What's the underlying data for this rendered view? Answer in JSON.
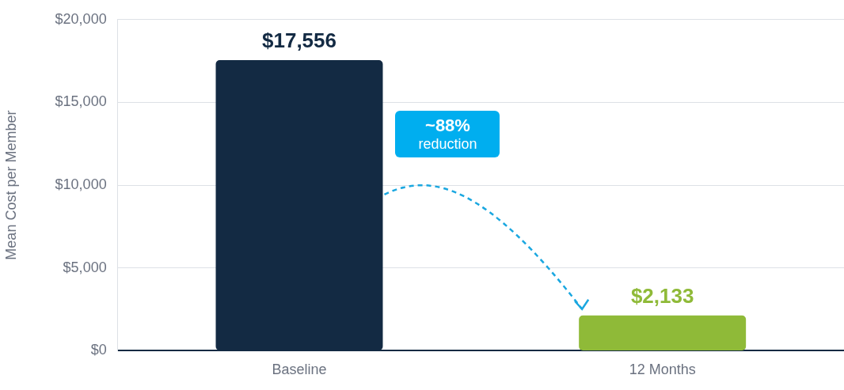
{
  "chart_data": {
    "type": "bar",
    "ylabel": "Mean Cost per Member",
    "categories": [
      "Baseline",
      "12 Months"
    ],
    "values": [
      17556,
      2133
    ],
    "colors": [
      "#132a43",
      "#8fba38"
    ],
    "value_labels": [
      "$17,556",
      "$2,133"
    ],
    "ylim": [
      0,
      20000
    ],
    "yticks": [
      {
        "value": 0,
        "label": "$0"
      },
      {
        "value": 5000,
        "label": "$5,000"
      },
      {
        "value": 10000,
        "label": "$10,000"
      },
      {
        "value": 15000,
        "label": "$15,000"
      },
      {
        "value": 20000,
        "label": "$20,000"
      }
    ],
    "grid": "y",
    "legend": false,
    "annotations": [
      "~88%",
      "reduction"
    ]
  }
}
